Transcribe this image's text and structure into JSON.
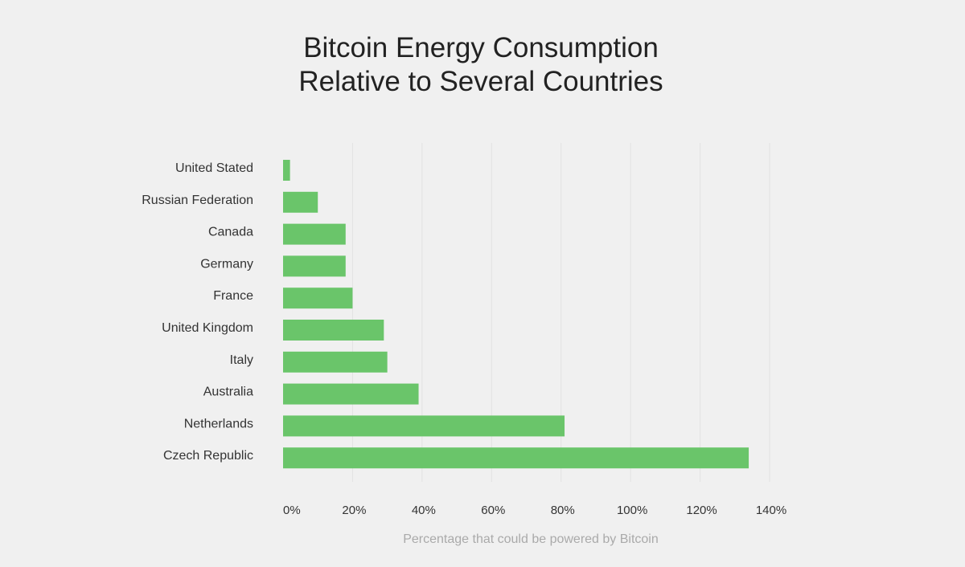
{
  "chart_data": {
    "type": "bar",
    "orientation": "horizontal",
    "title_lines": [
      "Bitcoin Energy Consumption",
      "Relative to Several Countries"
    ],
    "xlabel": "Percentage that could be powered by Bitcoin",
    "ylabel": "",
    "categories": [
      "United Stated",
      "Russian Federation",
      "Canada",
      "Germany",
      "France",
      "United Kingdom",
      "Italy",
      "Australia",
      "Netherlands",
      "Czech Republic"
    ],
    "values": [
      2,
      10,
      18,
      18,
      20,
      29,
      30,
      39,
      81,
      134
    ],
    "xlim": [
      0,
      140
    ],
    "x_ticks": [
      0,
      20,
      40,
      60,
      80,
      100,
      120,
      140
    ],
    "x_tick_labels": [
      "0%",
      "20%",
      "40%",
      "60%",
      "80%",
      "100%",
      "120%",
      "140%"
    ],
    "grid": true,
    "colors": {
      "bar": "#6ac56a",
      "gridline": "#e2e2e2",
      "background": "#f0f0f0"
    }
  }
}
